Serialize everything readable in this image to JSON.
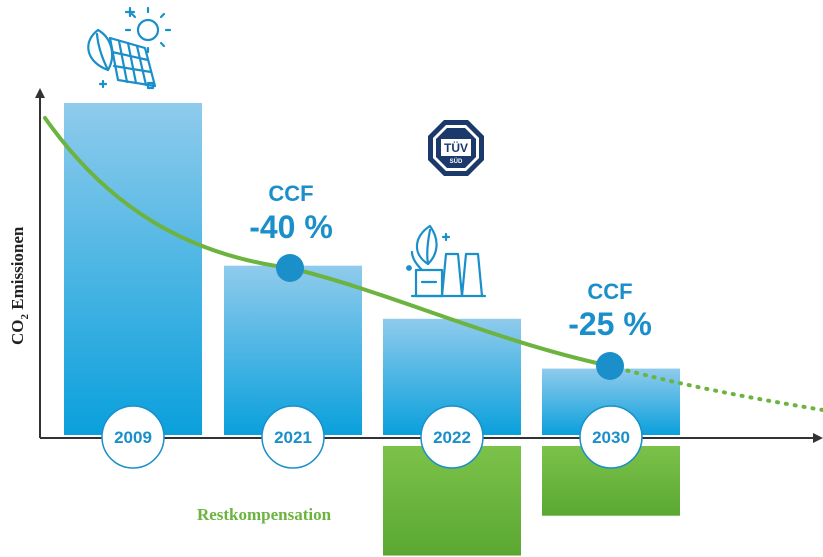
{
  "chart_data": {
    "type": "bar",
    "ylabel": "CO2 Emissionen",
    "categories": [
      "2009",
      "2021",
      "2022",
      "2030"
    ],
    "values": [
      100,
      51,
      35,
      20
    ],
    "compensation_label": "Restkompensation",
    "compensation_values": [
      0,
      0,
      33,
      21
    ],
    "trend_line": {
      "type": "curve",
      "color": "#6cb33f",
      "style_future": "dotted"
    },
    "annotations": [
      {
        "category": "2021",
        "label": "CCF",
        "value": "-40 %"
      },
      {
        "category": "2030",
        "label": "CCF",
        "value": "-25 %"
      }
    ],
    "badge_text": {
      "top": "TÜV",
      "bottom": "SÜD"
    },
    "icons": [
      "solar-panel-sun-leaf-icon",
      "factory-leaf-icon",
      "tuv-sud-logo"
    ],
    "colors": {
      "bar_top": "#8fcbec",
      "bar_bottom": "#0aa0dc",
      "compensation": "#6cb33f",
      "accent_blue": "#1a8fc9",
      "trend_green": "#6cb33f",
      "axis": "#333333"
    },
    "ylim": [
      0,
      100
    ]
  }
}
